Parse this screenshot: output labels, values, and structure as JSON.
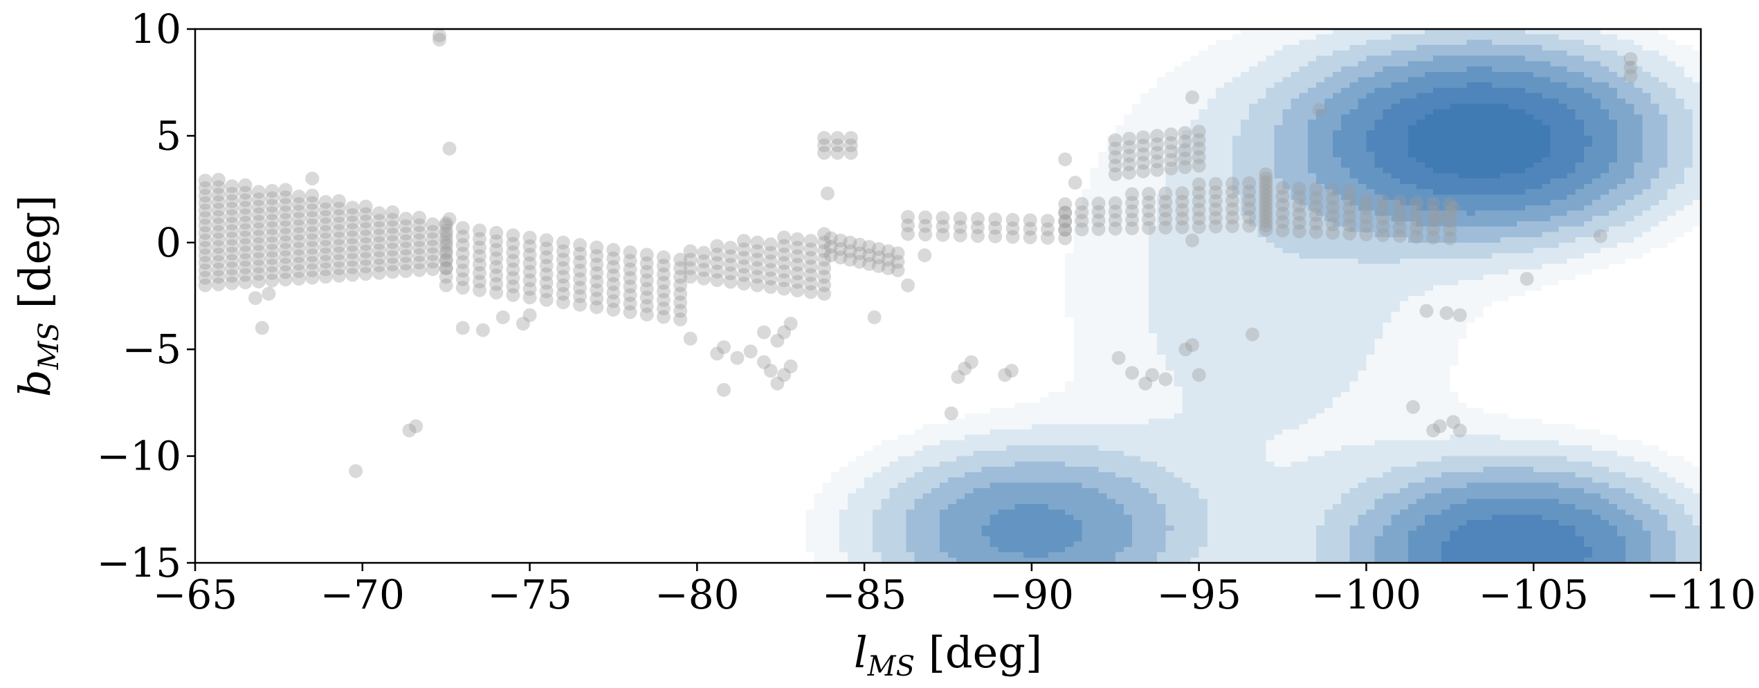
{
  "chart_data": {
    "type": "scatter",
    "xlabel": {
      "symbol": "l",
      "subscript": "MS",
      "unit": "[deg]"
    },
    "ylabel": {
      "symbol": "b",
      "subscript": "MS",
      "unit": "[deg]"
    },
    "xlim": [
      -65,
      -110
    ],
    "ylim": [
      -15,
      10
    ],
    "xticks": [
      -65,
      -70,
      -75,
      -80,
      -85,
      -90,
      -95,
      -100,
      -105,
      -110
    ],
    "yticks": [
      10,
      5,
      0,
      -5,
      -10,
      -15
    ],
    "xtick_labels": [
      "−65",
      "−70",
      "−75",
      "−80",
      "−85",
      "−90",
      "−95",
      "−100",
      "−105",
      "−110"
    ],
    "ytick_labels": [
      "10",
      "5",
      "0",
      "−5",
      "−10",
      "−15"
    ],
    "grid": false,
    "legend": null,
    "colors": {
      "points": "#9a9a9a",
      "density": "#2f6fae",
      "axis": "#000000"
    },
    "density_peaks": [
      {
        "x": -103.5,
        "y": 4.8,
        "sx": 3.2,
        "sy": 2.6,
        "weight": 1.0
      },
      {
        "x": -104.5,
        "y": -14.5,
        "sx": 3.0,
        "sy": 2.4,
        "weight": 0.8
      },
      {
        "x": -90.0,
        "y": -13.5,
        "sx": 3.0,
        "sy": 2.4,
        "weight": 0.5
      },
      {
        "x": -97.0,
        "y": -2.0,
        "sx": 4.0,
        "sy": 7.0,
        "weight": 0.12
      }
    ],
    "density_levels": [
      0.04,
      0.08,
      0.14,
      0.22,
      0.32,
      0.45,
      0.62,
      0.82
    ],
    "stripes": [
      {
        "x_start": -65.3,
        "x_end": -72.5,
        "x_step": 0.4,
        "y_top_start": 3.2,
        "y_top_end": 1.0,
        "y_bottom_start": -2.0,
        "y_bottom_end": -1.2,
        "y_step": 0.35
      },
      {
        "x_start": -72.5,
        "x_end": -79.5,
        "x_step": 0.5,
        "y_top_start": 0.8,
        "y_top_end": -0.8,
        "y_bottom_start": -2.0,
        "y_bottom_end": -3.6,
        "y_step": 0.4
      },
      {
        "x_start": -79.8,
        "x_end": -83.8,
        "x_step": 0.4,
        "y_top_start": -0.2,
        "y_top_end": 0.5,
        "y_bottom_start": -1.6,
        "y_bottom_end": -2.4,
        "y_step": 0.4
      },
      {
        "x_start": -84.0,
        "x_end": -86.0,
        "x_step": 0.3,
        "y_top_start": 0.4,
        "y_top_end": -0.3,
        "y_bottom_start": -0.6,
        "y_bottom_end": -1.3,
        "y_step": 0.4
      },
      {
        "x_start": -86.3,
        "x_end": -91.0,
        "x_step": 0.5,
        "y_top_start": 1.2,
        "y_top_end": 1.4,
        "y_bottom_start": 0.4,
        "y_bottom_end": 0.2,
        "y_step": 0.4
      },
      {
        "x_start": -91.0,
        "x_end": -97.0,
        "x_step": 0.5,
        "y_top_start": 1.8,
        "y_top_end": 3.2,
        "y_bottom_start": 0.6,
        "y_bottom_end": 0.8,
        "y_step": 0.4
      },
      {
        "x_start": -97.0,
        "x_end": -102.5,
        "x_step": 0.5,
        "y_top_start": 3.0,
        "y_top_end": 1.8,
        "y_bottom_start": 0.6,
        "y_bottom_end": 0.2,
        "y_step": 0.4
      },
      {
        "x_start": -92.5,
        "x_end": -95.0,
        "x_step": 0.4,
        "y_top_start": 4.8,
        "y_top_end": 5.2,
        "y_bottom_start": 3.2,
        "y_bottom_end": 3.6,
        "y_step": 0.4
      },
      {
        "x_start": -83.8,
        "x_end": -84.6,
        "x_step": 0.4,
        "y_top_start": 5.2,
        "y_top_end": 5.2,
        "y_bottom_start": 4.2,
        "y_bottom_end": 4.2,
        "y_step": 0.35
      }
    ],
    "points": [
      [
        -72.3,
        9.7
      ],
      [
        -72.3,
        9.5
      ],
      [
        -72.6,
        4.4
      ],
      [
        -68.5,
        3.0
      ],
      [
        -72.6,
        1.1
      ],
      [
        -67.0,
        -4.0
      ],
      [
        -66.8,
        -2.6
      ],
      [
        -67.2,
        -2.4
      ],
      [
        -69.8,
        -10.7
      ],
      [
        -71.4,
        -8.8
      ],
      [
        -71.6,
        -8.6
      ],
      [
        -73.0,
        -4.0
      ],
      [
        -73.6,
        -4.1
      ],
      [
        -74.2,
        -3.5
      ],
      [
        -74.8,
        -3.8
      ],
      [
        -75.0,
        -3.4
      ],
      [
        -79.8,
        -4.5
      ],
      [
        -80.6,
        -5.2
      ],
      [
        -80.8,
        -4.9
      ],
      [
        -80.8,
        -6.9
      ],
      [
        -81.2,
        -5.4
      ],
      [
        -81.6,
        -5.1
      ],
      [
        -82.0,
        -4.2
      ],
      [
        -82.0,
        -5.6
      ],
      [
        -82.2,
        -6.0
      ],
      [
        -82.4,
        -6.6
      ],
      [
        -82.6,
        -6.2
      ],
      [
        -82.8,
        -5.8
      ],
      [
        -82.4,
        -4.6
      ],
      [
        -82.6,
        -4.2
      ],
      [
        -82.8,
        -3.8
      ],
      [
        -83.9,
        2.3
      ],
      [
        -85.3,
        -3.5
      ],
      [
        -86.3,
        -2.0
      ],
      [
        -86.8,
        -0.6
      ],
      [
        -87.6,
        -8.0
      ],
      [
        -87.8,
        -6.3
      ],
      [
        -88.0,
        -5.9
      ],
      [
        -88.2,
        -5.6
      ],
      [
        -89.2,
        -6.2
      ],
      [
        -89.4,
        -6.0
      ],
      [
        -91.0,
        3.9
      ],
      [
        -91.3,
        2.8
      ],
      [
        -92.6,
        -5.4
      ],
      [
        -93.0,
        -6.1
      ],
      [
        -93.4,
        -6.6
      ],
      [
        -93.6,
        -6.2
      ],
      [
        -94.0,
        -6.4
      ],
      [
        -94.6,
        -5.0
      ],
      [
        -94.8,
        -4.8
      ],
      [
        -94.8,
        6.8
      ],
      [
        -95.0,
        -6.2
      ],
      [
        -94.8,
        0.1
      ],
      [
        -96.6,
        -4.3
      ],
      [
        -98.6,
        6.2
      ],
      [
        -101.4,
        -7.7
      ],
      [
        -102.0,
        -8.8
      ],
      [
        -102.2,
        -8.6
      ],
      [
        -102.6,
        -8.4
      ],
      [
        -102.8,
        -8.8
      ],
      [
        -101.8,
        -3.2
      ],
      [
        -102.4,
        -3.3
      ],
      [
        -102.8,
        -3.4
      ],
      [
        -104.8,
        -1.7
      ],
      [
        -107.0,
        0.3
      ],
      [
        -107.9,
        8.6
      ],
      [
        -107.9,
        8.2
      ],
      [
        -107.9,
        7.8
      ],
      [
        -102.2,
        1.2
      ],
      [
        -102.6,
        1.6
      ]
    ]
  }
}
